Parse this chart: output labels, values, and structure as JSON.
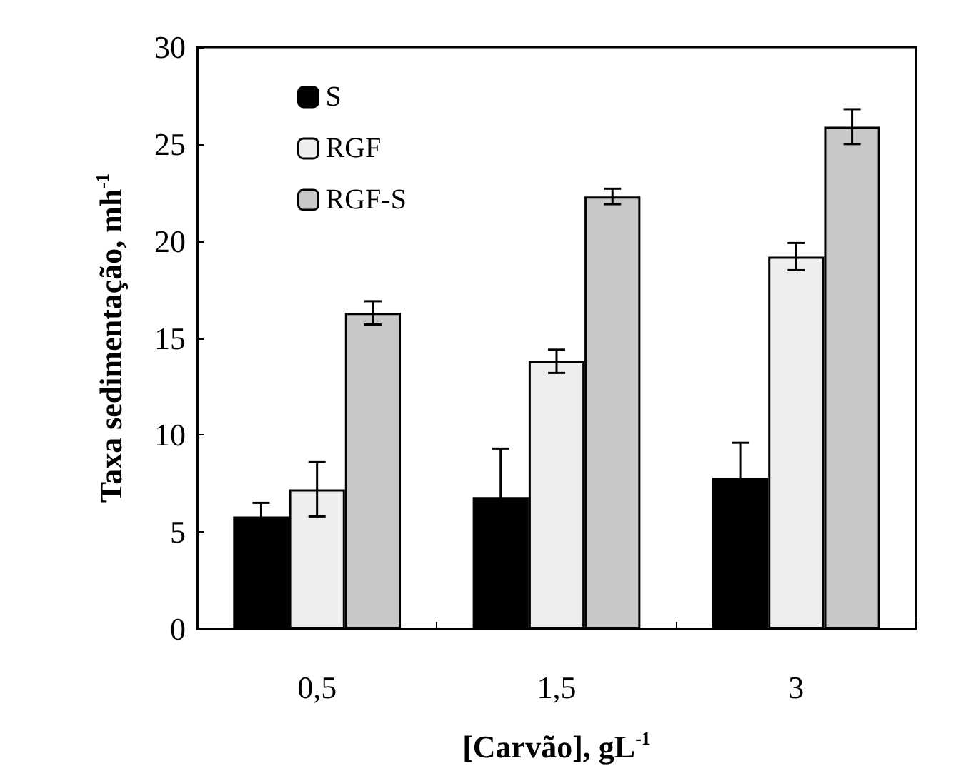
{
  "chart_data": {
    "type": "bar",
    "xlabel": "[Carvão], gL$^{-1}$",
    "ylabel": "Taxa sedimentação, mh$^{-1}$",
    "categories": [
      "0,5",
      "1,5",
      "3"
    ],
    "series": [
      {
        "name": "S",
        "color": "#000000",
        "values": [
          5.8,
          6.8,
          7.8
        ],
        "errors": [
          0.7,
          2.5,
          1.8
        ]
      },
      {
        "name": "RGF",
        "color": "#eeeeee",
        "values": [
          7.2,
          13.8,
          19.2
        ],
        "errors": [
          1.4,
          0.6,
          0.7
        ]
      },
      {
        "name": "RGF-S",
        "color": "#c8c8c8",
        "values": [
          16.3,
          22.3,
          25.9
        ],
        "errors": [
          0.6,
          0.4,
          0.9
        ]
      }
    ],
    "ylim": [
      0,
      30
    ],
    "yticks": [
      0,
      5,
      10,
      15,
      20,
      25,
      30
    ],
    "grid": false,
    "legend": "top left"
  }
}
